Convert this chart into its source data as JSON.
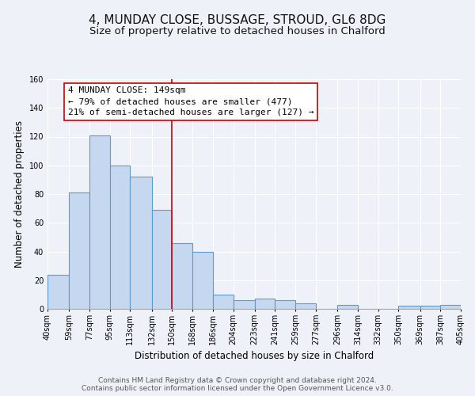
{
  "title": "4, MUNDAY CLOSE, BUSSAGE, STROUD, GL6 8DG",
  "subtitle": "Size of property relative to detached houses in Chalford",
  "xlabel": "Distribution of detached houses by size in Chalford",
  "ylabel": "Number of detached properties",
  "bar_left_edges": [
    40,
    59,
    77,
    95,
    113,
    132,
    150,
    168,
    186,
    204,
    223,
    241,
    259,
    277,
    296,
    314,
    332,
    350,
    369,
    387
  ],
  "bar_heights": [
    24,
    81,
    121,
    100,
    92,
    69,
    46,
    40,
    10,
    6,
    7,
    6,
    4,
    0,
    3,
    0,
    0,
    2,
    2,
    3
  ],
  "bar_widths": [
    19,
    18,
    18,
    18,
    19,
    18,
    18,
    18,
    18,
    19,
    18,
    18,
    18,
    19,
    18,
    18,
    18,
    19,
    18,
    18
  ],
  "tick_labels": [
    "40sqm",
    "59sqm",
    "77sqm",
    "95sqm",
    "113sqm",
    "132sqm",
    "150sqm",
    "168sqm",
    "186sqm",
    "204sqm",
    "223sqm",
    "241sqm",
    "259sqm",
    "277sqm",
    "296sqm",
    "314sqm",
    "332sqm",
    "350sqm",
    "369sqm",
    "387sqm",
    "405sqm"
  ],
  "tick_positions": [
    40,
    59,
    77,
    95,
    113,
    132,
    150,
    168,
    186,
    204,
    223,
    241,
    259,
    277,
    296,
    314,
    332,
    350,
    369,
    387,
    405
  ],
  "bar_color": "#c5d8f0",
  "bar_edge_color": "#5b9bd5",
  "reference_line_x": 150,
  "reference_line_color": "#cc0000",
  "annotation_line1": "4 MUNDAY CLOSE: 149sqm",
  "annotation_line2": "← 79% of detached houses are smaller (477)",
  "annotation_line3": "21% of semi-detached houses are larger (127) →",
  "annotation_box_color": "#ffffff",
  "annotation_box_edge_color": "#cc0000",
  "ylim": [
    0,
    160
  ],
  "xlim": [
    40,
    405
  ],
  "footer1": "Contains HM Land Registry data © Crown copyright and database right 2024.",
  "footer2": "Contains public sector information licensed under the Open Government Licence v3.0.",
  "bg_color": "#eef2f8",
  "plot_bg_color": "#eef2f8",
  "grid_color": "#ffffff",
  "title_fontsize": 11,
  "subtitle_fontsize": 9.5,
  "axis_label_fontsize": 8.5,
  "tick_fontsize": 7,
  "annotation_fontsize": 8,
  "footer_fontsize": 6.5
}
